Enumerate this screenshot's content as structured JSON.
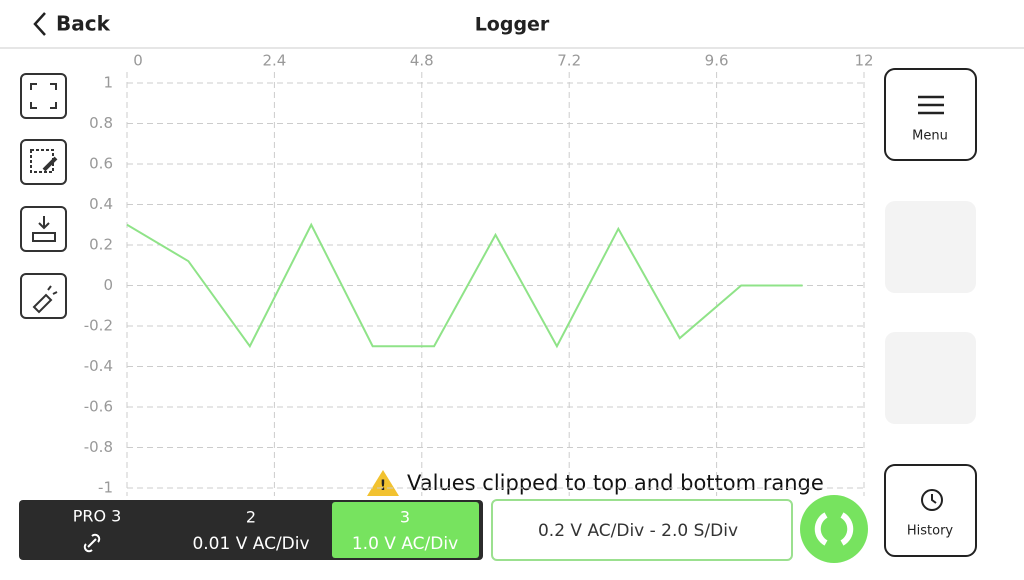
{
  "header": {
    "back": "Back",
    "title": "Logger"
  },
  "chart_data": {
    "type": "line",
    "x": [
      0,
      1,
      2,
      3,
      4,
      5,
      6,
      7,
      8,
      9,
      10,
      11
    ],
    "series": [
      {
        "color": "#8fe388",
        "values": [
          0.3,
          0.12,
          -0.3,
          0.3,
          -0.3,
          -0.3,
          0.25,
          -0.3,
          0.28,
          -0.26,
          0,
          0
        ]
      }
    ],
    "xlim": [
      0,
      12
    ],
    "xticks": [
      0,
      2.4,
      4.8,
      7.2,
      9.6,
      12
    ],
    "ylim": [
      -1,
      1
    ],
    "yticks": [
      1,
      0.8,
      0.6,
      0.4,
      0.2,
      0,
      -0.2,
      -0.4,
      -0.6,
      -0.8,
      -1
    ],
    "grid": true
  },
  "warning": "Values clipped to top and bottom range",
  "channels": {
    "device": "PRO 3",
    "items": [
      {
        "name": "2",
        "scale": "0.01 V AC/Div"
      },
      {
        "name": "3",
        "scale": "1.0 V AC/Div"
      }
    ]
  },
  "scale_summary": "0.2 V AC/Div - 2.0 S/Div",
  "buttons": {
    "menu": "Menu",
    "history": "History"
  }
}
